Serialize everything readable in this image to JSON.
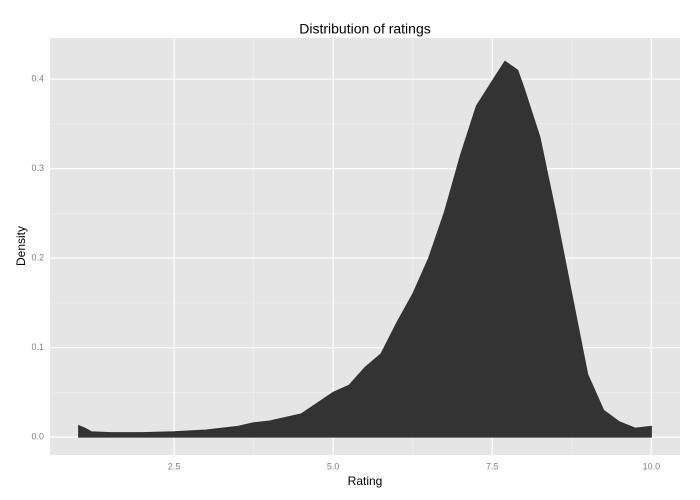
{
  "chart_data": {
    "type": "area",
    "title": "Distribution of ratings",
    "x_label": "Rating",
    "y_label": "Density",
    "x": [
      1.0,
      1.1,
      1.2,
      1.5,
      2.0,
      2.5,
      3.0,
      3.5,
      3.75,
      4.0,
      4.5,
      5.0,
      5.25,
      5.5,
      5.75,
      6.0,
      6.25,
      6.5,
      6.75,
      7.0,
      7.25,
      7.5,
      7.7,
      7.9,
      8.0,
      8.25,
      8.5,
      8.75,
      9.0,
      9.25,
      9.5,
      9.75,
      10.0
    ],
    "values": [
      0.013,
      0.01,
      0.006,
      0.005,
      0.005,
      0.006,
      0.008,
      0.012,
      0.016,
      0.018,
      0.026,
      0.05,
      0.058,
      0.078,
      0.093,
      0.128,
      0.16,
      0.2,
      0.252,
      0.315,
      0.37,
      0.398,
      0.42,
      0.41,
      0.39,
      0.335,
      0.25,
      0.16,
      0.07,
      0.03,
      0.017,
      0.01,
      0.012
    ],
    "color": "#333333",
    "xlim": [
      0.55,
      10.45
    ],
    "ylim": [
      -0.02,
      0.446
    ],
    "xticks": [
      2.5,
      {
        "value": 5,
        "label": "5.0"
      },
      7.5,
      {
        "value": 10,
        "label": "10.0"
      }
    ],
    "yticks": [
      {
        "value": 0,
        "label": "0.0"
      },
      0.1,
      0.2,
      0.3,
      0.4
    ],
    "grid": true
  }
}
